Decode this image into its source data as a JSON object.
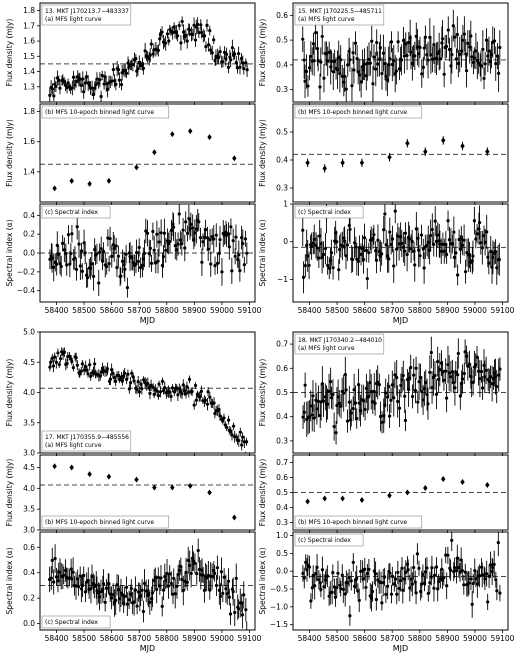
{
  "x_axis_label": "MJD",
  "x_ticks": [
    58400,
    58500,
    58600,
    58700,
    58800,
    58900,
    59000,
    59100
  ],
  "chart_data": [
    {
      "source": "13. MKT J170213.7−483337",
      "panels": [
        {
          "type": "scatter",
          "label": "(a) MFS light curve",
          "ylabel": "Flux density (mJy)",
          "ylim": [
            1.2,
            1.85
          ],
          "yticks": [
            "1.3",
            "1.4",
            "1.5",
            "1.6",
            "1.7",
            "1.8"
          ],
          "ytick_values": [
            1.3,
            1.4,
            1.5,
            1.6,
            1.7,
            1.8
          ],
          "ref_line": 1.45,
          "noise": 0.035,
          "err": 0.04,
          "trend": [
            [
              58380,
              1.28
            ],
            [
              58420,
              1.34
            ],
            [
              58480,
              1.33
            ],
            [
              58540,
              1.31
            ],
            [
              58600,
              1.34
            ],
            [
              58660,
              1.43
            ],
            [
              58700,
              1.46
            ],
            [
              58760,
              1.55
            ],
            [
              58820,
              1.64
            ],
            [
              58880,
              1.69
            ],
            [
              58940,
              1.63
            ],
            [
              58980,
              1.52
            ],
            [
              59040,
              1.48
            ],
            [
              59080,
              1.45
            ]
          ]
        },
        {
          "type": "scatter",
          "label": "(b) MFS 10-epoch binned light curve",
          "ylabel": "Flux density (mJy)",
          "ylim": [
            1.2,
            1.85
          ],
          "yticks": [
            "1.4",
            "1.6",
            "1.8"
          ],
          "ytick_values": [
            1.4,
            1.6,
            1.8
          ],
          "ref_line": 1.45,
          "x": [
            58393,
            58455,
            58520,
            58590,
            58690,
            58755,
            58820,
            58885,
            58955,
            59045
          ],
          "y": [
            1.29,
            1.34,
            1.32,
            1.34,
            1.43,
            1.53,
            1.65,
            1.67,
            1.63,
            1.49
          ],
          "err": [
            0.01,
            0.01,
            0.01,
            0.01,
            0.01,
            0.01,
            0.01,
            0.01,
            0.01,
            0.01
          ]
        },
        {
          "type": "scatter",
          "label": "(c) Spectral index",
          "ylabel": "Spectral index (α)",
          "ylim": [
            -0.52,
            0.52
          ],
          "yticks": [
            "−0.4",
            "−0.2",
            "0.0",
            "0.2",
            "0.4"
          ],
          "ytick_values": [
            -0.4,
            -0.2,
            0,
            0.2,
            0.4
          ],
          "ref_line": 0.0,
          "noise": 0.12,
          "err": 0.12,
          "trend": [
            [
              58380,
              0.0
            ],
            [
              58500,
              -0.05
            ],
            [
              58620,
              -0.1
            ],
            [
              58700,
              -0.05
            ],
            [
              58800,
              0.15
            ],
            [
              58900,
              0.2
            ],
            [
              59000,
              0.05
            ],
            [
              59080,
              0.0
            ]
          ]
        }
      ]
    },
    {
      "source": "15. MKT J170225.5−485711",
      "panels": [
        {
          "type": "scatter",
          "label": "(a) MFS light curve",
          "ylabel": "Flux density (mJy)",
          "ylim": [
            0.25,
            0.65
          ],
          "yticks": [
            "0.3",
            "0.4",
            "0.5",
            "0.6"
          ],
          "ytick_values": [
            0.3,
            0.4,
            0.5,
            0.6
          ],
          "ref_line": 0.42,
          "noise": 0.05,
          "err": 0.06,
          "trend": [
            [
              58380,
              0.4
            ],
            [
              58500,
              0.39
            ],
            [
              58600,
              0.4
            ],
            [
              58700,
              0.42
            ],
            [
              58800,
              0.44
            ],
            [
              58900,
              0.46
            ],
            [
              59000,
              0.44
            ],
            [
              59080,
              0.43
            ]
          ]
        },
        {
          "type": "scatter",
          "label": "(b) MFS 10-epoch binned light curve",
          "ylabel": "Flux density (mJy)",
          "ylim": [
            0.25,
            0.6
          ],
          "yticks": [
            "0.3",
            "0.4",
            "0.5"
          ],
          "ytick_values": [
            0.3,
            0.4,
            0.5
          ],
          "ref_line": 0.42,
          "x": [
            58393,
            58455,
            58520,
            58590,
            58690,
            58755,
            58820,
            58885,
            58955,
            59045
          ],
          "y": [
            0.39,
            0.37,
            0.39,
            0.39,
            0.41,
            0.46,
            0.43,
            0.47,
            0.45,
            0.43
          ],
          "err": [
            0.015,
            0.015,
            0.015,
            0.015,
            0.015,
            0.015,
            0.015,
            0.015,
            0.015,
            0.015
          ]
        },
        {
          "type": "scatter",
          "label": "(c) Spectral index",
          "ylabel": "Spectral index (α)",
          "ylim": [
            -1.6,
            1.0
          ],
          "yticks": [
            "−1",
            "0",
            "1"
          ],
          "ytick_values": [
            -1,
            0,
            1
          ],
          "ref_line": -0.15,
          "noise": 0.35,
          "err": 0.35,
          "trend": [
            [
              58380,
              -0.2
            ],
            [
              58600,
              -0.25
            ],
            [
              58800,
              -0.1
            ],
            [
              59080,
              -0.2
            ]
          ]
        }
      ]
    },
    {
      "source": "17. MKT J170355.9−485556",
      "panels": [
        {
          "type": "scatter",
          "label": "(a) MFS light curve",
          "ylabel": "Flux density (mJy)",
          "ylim": [
            3.0,
            5.0
          ],
          "yticks": [
            "3.0",
            "3.5",
            "4.0",
            "4.5",
            "5.0"
          ],
          "ytick_values": [
            3.0,
            3.5,
            4.0,
            4.5,
            5.0
          ],
          "ref_line": 4.07,
          "noise": 0.08,
          "err": 0.08,
          "trend": [
            [
              58380,
              4.52
            ],
            [
              58430,
              4.6
            ],
            [
              58480,
              4.42
            ],
            [
              58560,
              4.35
            ],
            [
              58620,
              4.3
            ],
            [
              58680,
              4.2
            ],
            [
              58720,
              4.05
            ],
            [
              58800,
              4.03
            ],
            [
              58880,
              4.05
            ],
            [
              58950,
              3.92
            ],
            [
              59000,
              3.6
            ],
            [
              59050,
              3.3
            ],
            [
              59090,
              3.15
            ]
          ]
        },
        {
          "type": "scatter",
          "label": "(b) MFS 10-epoch binned light curve",
          "ylabel": "Flux density (mJy)",
          "ylim": [
            3.0,
            4.8
          ],
          "yticks": [
            "3.0",
            "3.5",
            "4.0",
            "4.5"
          ],
          "ytick_values": [
            3.0,
            3.5,
            4.0,
            4.5
          ],
          "ref_line": 4.08,
          "x": [
            58393,
            58455,
            58520,
            58590,
            58690,
            58755,
            58820,
            58885,
            58955,
            59045
          ],
          "y": [
            4.53,
            4.5,
            4.34,
            4.28,
            4.21,
            4.02,
            4.02,
            4.06,
            3.9,
            3.3
          ],
          "err": [
            0.02,
            0.02,
            0.02,
            0.02,
            0.02,
            0.02,
            0.02,
            0.02,
            0.02,
            0.02
          ]
        },
        {
          "type": "scatter",
          "label": "(c) Spectral index",
          "ylabel": "Spectral index (α)",
          "ylim": [
            -0.05,
            0.72
          ],
          "yticks": [
            "0.0",
            "0.2",
            "0.4",
            "0.6"
          ],
          "ytick_values": [
            0,
            0.2,
            0.4,
            0.6
          ],
          "ref_line": 0.3,
          "noise": 0.07,
          "err": 0.09,
          "trend": [
            [
              58380,
              0.38
            ],
            [
              58480,
              0.3
            ],
            [
              58600,
              0.25
            ],
            [
              58700,
              0.24
            ],
            [
              58800,
              0.32
            ],
            [
              58900,
              0.42
            ],
            [
              58980,
              0.35
            ],
            [
              59060,
              0.18
            ],
            [
              59090,
              0.1
            ]
          ]
        }
      ]
    },
    {
      "source": "18. MKT J170340.2−484010",
      "panels": [
        {
          "type": "scatter",
          "label": "(a) MFS light curve",
          "ylabel": "Flux density (mJy)",
          "ylim": [
            0.25,
            0.75
          ],
          "yticks": [
            "0.3",
            "0.4",
            "0.5",
            "0.6",
            "0.7"
          ],
          "ytick_values": [
            0.3,
            0.4,
            0.5,
            0.6,
            0.7
          ],
          "ref_line": 0.5,
          "noise": 0.05,
          "err": 0.06,
          "trend": [
            [
              58380,
              0.45
            ],
            [
              58500,
              0.46
            ],
            [
              58650,
              0.48
            ],
            [
              58750,
              0.5
            ],
            [
              58850,
              0.55
            ],
            [
              58950,
              0.57
            ],
            [
              59080,
              0.55
            ]
          ]
        },
        {
          "type": "scatter",
          "label": "(b) MFS 10-epoch binned light curve",
          "ylabel": "Flux density (mJy)",
          "ylim": [
            0.25,
            0.75
          ],
          "yticks": [
            "0.3",
            "0.4",
            "0.5",
            "0.6",
            "0.7"
          ],
          "ytick_values": [
            0.3,
            0.4,
            0.5,
            0.6,
            0.7
          ],
          "ref_line": 0.5,
          "x": [
            58393,
            58455,
            58520,
            58590,
            58690,
            58755,
            58820,
            58885,
            58955,
            59045
          ],
          "y": [
            0.44,
            0.46,
            0.46,
            0.45,
            0.48,
            0.5,
            0.53,
            0.59,
            0.57,
            0.55
          ],
          "err": [
            0.015,
            0.015,
            0.015,
            0.015,
            0.015,
            0.015,
            0.015,
            0.015,
            0.015,
            0.015
          ]
        },
        {
          "type": "scatter",
          "label": "(c) Spectral index",
          "ylabel": "Spectral index (α)",
          "ylim": [
            -1.65,
            1.1
          ],
          "yticks": [
            "−1.5",
            "−1.0",
            "−0.5",
            "0.0",
            "0.5",
            "1.0"
          ],
          "ytick_values": [
            -1.5,
            -1.0,
            -0.5,
            0,
            0.5,
            1.0
          ],
          "ref_line": -0.15,
          "noise": 0.3,
          "err": 0.3,
          "trend": [
            [
              58380,
              -0.2
            ],
            [
              58700,
              -0.3
            ],
            [
              58900,
              -0.1
            ],
            [
              59080,
              -0.2
            ]
          ]
        }
      ]
    }
  ]
}
